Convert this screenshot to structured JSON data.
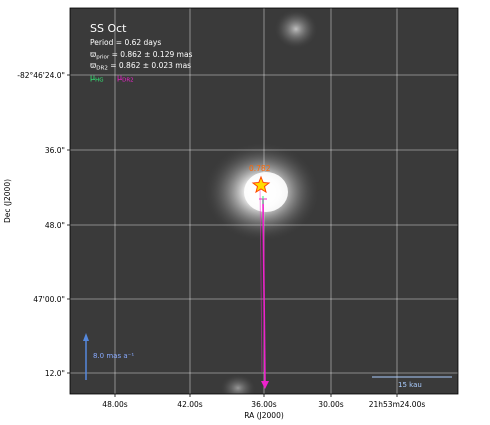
{
  "title": "SS Oct",
  "period_text": "Period =  0.62 days",
  "parallax_prior": {
    "symbol": "ϖ",
    "sub": "prior",
    "text": " = 0.862 ± 0.129 mas"
  },
  "parallax_dr2": {
    "symbol": "ϖ",
    "sub": "DR2",
    "text": " = 0.862 ± 0.023 mas"
  },
  "legend": {
    "hg": {
      "symbol": "μ",
      "sub": "HG",
      "color": "#33ee77"
    },
    "dr2": {
      "symbol": "μ",
      "sub": "DR2",
      "color": "#ee22cc"
    }
  },
  "axes": {
    "xlabel": "RA (J2000)",
    "ylabel": "Dec (J2000)",
    "xticks": [
      "48.00s",
      "42.00s",
      "36.00s",
      "30.00s",
      "21h53m24.00s"
    ],
    "yticks": [
      "-82°46'24.0\"",
      "36.0\"",
      "48.0\"",
      "47'00.0\"",
      "12.0\""
    ]
  },
  "star_label": "0.782",
  "scale_arrow_label": "8.0 mas a⁻¹",
  "scale_bar_label": "15 kau",
  "colors": {
    "star": "#ff8800",
    "dr2_arrow": "#ee22cc",
    "hg_arrow": "#33ee77",
    "scale_arrow": "#5588dd",
    "grid": "#ffffff"
  }
}
